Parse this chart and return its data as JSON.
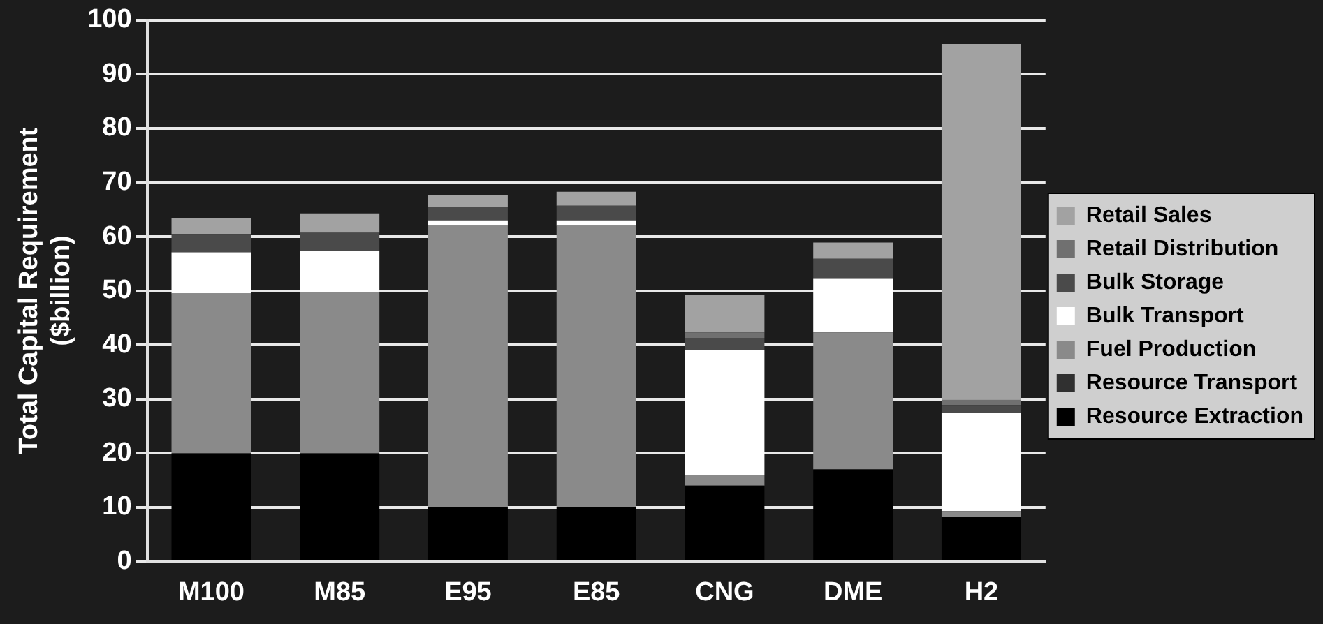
{
  "chart_data": {
    "type": "bar",
    "stacked": true,
    "ylabel": "Total Capital Requirement\n($billion)",
    "categories": [
      "M100",
      "M85",
      "E95",
      "E85",
      "CNG",
      "DME",
      "H2"
    ],
    "series": [
      {
        "name": "Resource Extraction",
        "color": "#000000",
        "values": [
          20,
          20,
          10,
          10,
          14,
          17,
          8.3
        ]
      },
      {
        "name": "Resource Transport",
        "color": "#303030",
        "values": [
          0,
          0,
          0,
          0,
          0,
          0,
          0
        ]
      },
      {
        "name": "Fuel Production",
        "color": "#8a8a8a",
        "values": [
          29.5,
          29.7,
          52,
          52,
          2,
          25.3,
          1
        ]
      },
      {
        "name": "Bulk Transport",
        "color": "#ffffff",
        "values": [
          7.6,
          7.7,
          1,
          1,
          23,
          9.9,
          18.2
        ]
      },
      {
        "name": "Bulk Storage",
        "color": "#4a4a4a",
        "values": [
          3.4,
          3.3,
          2.5,
          2.7,
          2.3,
          3.7,
          1.4
        ]
      },
      {
        "name": "Retail Distribution",
        "color": "#707070",
        "values": [
          0,
          0,
          0,
          0,
          1,
          0,
          1
        ]
      },
      {
        "name": "Retail Sales",
        "color": "#a2a2a2",
        "values": [
          3,
          3.6,
          2.2,
          2.6,
          6.9,
          3,
          65.7
        ]
      }
    ],
    "ylim": [
      0,
      100
    ],
    "yticks": [
      0,
      10,
      20,
      30,
      40,
      50,
      60,
      70,
      80,
      90,
      100
    ],
    "grid": "y",
    "legend": "right"
  }
}
